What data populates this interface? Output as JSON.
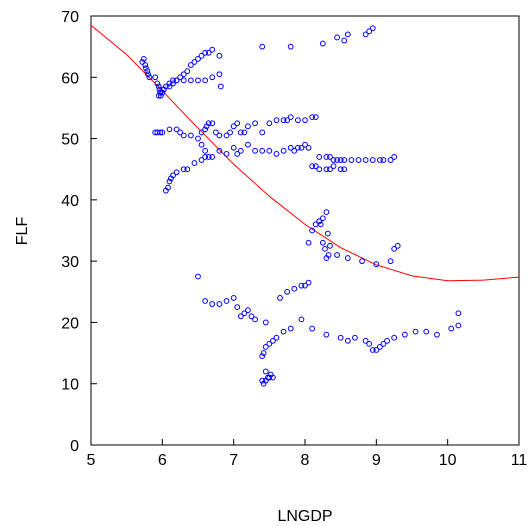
{
  "chart_data": {
    "type": "scatter",
    "xlabel": "LNGDP",
    "ylabel": "FLF",
    "xlim": [
      5,
      11
    ],
    "ylim": [
      0,
      70
    ],
    "x_ticks": [
      "5",
      "6",
      "7",
      "8",
      "9",
      "10",
      "11"
    ],
    "y_ticks": [
      "0",
      "10",
      "20",
      "30",
      "40",
      "50",
      "60",
      "70"
    ],
    "grid": false,
    "legend": "none",
    "colors": {
      "points": "#0000ff",
      "curve": "#ff0000"
    },
    "series": [
      {
        "kind": "points",
        "x": [
          5.72,
          5.74,
          5.76,
          5.77,
          5.79,
          5.8,
          5.82,
          5.9,
          5.93,
          5.95,
          5.96,
          5.97,
          5.98,
          6.0,
          6.02,
          6.1,
          6.15,
          6.2,
          6.25,
          6.3,
          6.35,
          6.4,
          6.45,
          6.5,
          6.55,
          6.6,
          6.65,
          6.7,
          6.8,
          5.95,
          5.97,
          6.0,
          6.02,
          6.05,
          6.1,
          6.15,
          6.2,
          6.3,
          6.4,
          6.5,
          6.6,
          6.7,
          6.8,
          6.82,
          7.4,
          7.8,
          8.25,
          8.45,
          8.55,
          8.6,
          8.85,
          8.9,
          8.95,
          5.9,
          5.93,
          5.97,
          6.0,
          6.1,
          6.2,
          6.25,
          6.3,
          6.4,
          6.5,
          6.55,
          6.6,
          6.62,
          6.65,
          6.7,
          6.75,
          6.8,
          6.9,
          6.95,
          7.0,
          7.05,
          7.1,
          7.15,
          7.2,
          7.3,
          7.4,
          7.5,
          7.6,
          7.7,
          7.75,
          7.8,
          7.9,
          8.0,
          8.1,
          8.15,
          8.2,
          8.3,
          8.35,
          8.4,
          8.45,
          8.5,
          8.55,
          8.65,
          8.75,
          8.85,
          8.95,
          9.05,
          9.1,
          9.2,
          9.25,
          6.55,
          6.6,
          6.7,
          6.8,
          6.9,
          7.0,
          7.05,
          7.1,
          7.2,
          7.3,
          7.4,
          7.5,
          7.6,
          7.7,
          7.8,
          7.85,
          7.9,
          7.95,
          8.0,
          8.05,
          8.1,
          8.15,
          8.2,
          8.3,
          8.35,
          8.4,
          8.5,
          8.55,
          6.05,
          6.08,
          6.1,
          6.12,
          6.15,
          6.2,
          6.3,
          6.35,
          6.45,
          6.55,
          6.6,
          6.65,
          8.2,
          8.22,
          8.25,
          8.28,
          8.3,
          8.33,
          8.05,
          8.1,
          8.15,
          8.2,
          8.25,
          8.3,
          8.32,
          8.35,
          8.45,
          8.6,
          8.8,
          9.0,
          9.2,
          9.25,
          9.3,
          6.5,
          6.6,
          6.7,
          6.8,
          6.9,
          7.0,
          7.05,
          7.1,
          7.15,
          7.2,
          7.25,
          7.3,
          7.45,
          7.65,
          7.75,
          7.85,
          7.95,
          8.0,
          8.05,
          7.4,
          7.42,
          7.45,
          7.48,
          7.5,
          7.52,
          7.55,
          7.45,
          7.4,
          7.42,
          7.45,
          7.5,
          7.55,
          7.6,
          7.7,
          7.8,
          7.95,
          8.1,
          8.3,
          8.5,
          8.6,
          8.7,
          8.85,
          8.9,
          8.95,
          9.0,
          9.05,
          9.1,
          9.15,
          9.25,
          9.4,
          9.55,
          9.7,
          9.85,
          10.05,
          10.15,
          10.15
        ],
        "y": [
          62.5,
          63.0,
          62.0,
          61.5,
          61.0,
          60.5,
          60.0,
          60.0,
          59.0,
          58.5,
          58.0,
          57.5,
          57.0,
          57.5,
          58.0,
          58.5,
          59.0,
          59.5,
          60.0,
          60.5,
          61.0,
          62.0,
          62.5,
          63.0,
          63.5,
          64.0,
          64.0,
          64.5,
          63.5,
          57.0,
          57.5,
          57.5,
          58.0,
          58.5,
          59.0,
          59.5,
          59.5,
          59.5,
          59.5,
          59.5,
          59.5,
          60.0,
          60.5,
          58.5,
          65.0,
          65.0,
          65.5,
          66.5,
          66.0,
          67.0,
          67.0,
          67.5,
          68.0,
          51.0,
          51.0,
          51.0,
          51.0,
          51.5,
          51.5,
          51.0,
          50.5,
          50.5,
          50.0,
          51.0,
          51.5,
          52.0,
          52.5,
          52.5,
          51.0,
          50.5,
          50.5,
          51.0,
          52.0,
          52.5,
          51.0,
          51.0,
          52.0,
          52.5,
          51.0,
          52.5,
          53.0,
          53.0,
          53.0,
          53.5,
          53.0,
          53.0,
          53.5,
          53.5,
          47.0,
          47.0,
          47.0,
          46.5,
          46.5,
          46.5,
          46.5,
          46.5,
          46.5,
          46.5,
          46.5,
          46.5,
          46.5,
          46.5,
          47.0,
          49.0,
          48.0,
          47.0,
          48.0,
          47.5,
          48.5,
          47.5,
          48.0,
          49.0,
          48.0,
          48.0,
          48.0,
          47.5,
          48.0,
          48.5,
          48.0,
          48.5,
          48.5,
          49.0,
          48.5,
          45.5,
          45.5,
          45.0,
          45.0,
          45.0,
          45.5,
          45.0,
          45.0,
          41.5,
          42.0,
          43.0,
          43.5,
          44.0,
          44.5,
          45.0,
          45.0,
          46.0,
          46.5,
          47.0,
          47.0,
          36.5,
          36.0,
          33.0,
          32.0,
          30.5,
          31.0,
          33.0,
          35.0,
          36.0,
          36.5,
          37.0,
          38.0,
          34.5,
          32.5,
          31.0,
          30.5,
          30.0,
          29.5,
          30.0,
          32.0,
          32.5,
          27.5,
          23.5,
          23.0,
          23.0,
          23.5,
          24.0,
          22.5,
          21.0,
          21.5,
          22.0,
          21.0,
          20.5,
          20.0,
          24.0,
          25.0,
          25.5,
          26.0,
          26.0,
          26.5,
          10.5,
          10.0,
          10.5,
          11.0,
          11.0,
          11.5,
          11.0,
          12.0,
          14.5,
          15.0,
          16.0,
          16.5,
          17.0,
          17.5,
          18.5,
          19.0,
          20.5,
          19.0,
          18.0,
          17.5,
          17.0,
          17.5,
          17.0,
          16.5,
          15.5,
          15.5,
          16.0,
          16.5,
          17.0,
          17.5,
          18.0,
          18.5,
          18.5,
          18.0,
          19.0,
          19.5,
          21.5
        ]
      },
      {
        "kind": "fitted-curve",
        "x": [
          5,
          5.5,
          6,
          6.5,
          7,
          7.5,
          8,
          8.5,
          9,
          9.5,
          10,
          10.5,
          11
        ],
        "y": [
          68.5,
          63.7,
          57.8,
          51.7,
          45.8,
          40.6,
          36.0,
          32.2,
          29.4,
          27.6,
          26.8,
          26.9,
          27.4
        ]
      }
    ]
  }
}
